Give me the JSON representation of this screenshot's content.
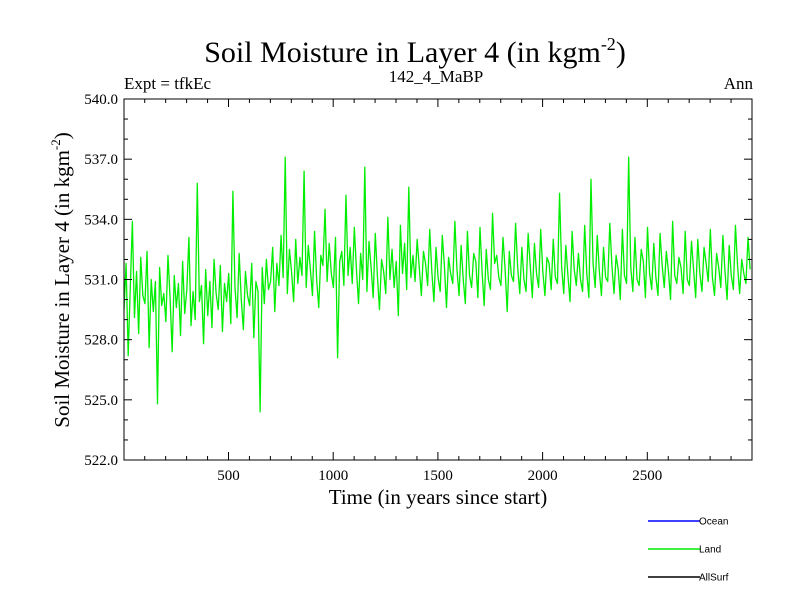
{
  "chart_data": {
    "type": "line",
    "title_main": "Soil Moisture in Layer 4 (in kgm",
    "title_sup": "-2",
    "title_close": ")",
    "subtitle_left": "Expt = tfkEc",
    "subtitle_center": "142_4_MaBP",
    "subtitle_right": "Ann",
    "xlabel": "Time (in years since start)",
    "ylabel_main": "Soil Moisture in Layer 4 (in kgm",
    "ylabel_sup": "-2",
    "ylabel_close": ")",
    "xlim": [
      1,
      3000
    ],
    "ylim": [
      522.0,
      540.0
    ],
    "xticks": [
      500,
      1000,
      1500,
      2000,
      2500
    ],
    "xtick_labels": [
      "500",
      "1000",
      "1500",
      "2000",
      "2500"
    ],
    "yticks": [
      522.0,
      525.0,
      528.0,
      531.0,
      534.0,
      537.0,
      540.0
    ],
    "ytick_labels": [
      "522.0",
      "525.0",
      "528.0",
      "531.0",
      "534.0",
      "537.0",
      "540.0"
    ],
    "legend_position": "below-right",
    "series": [
      {
        "name": "Ocean",
        "color": "#0000ff",
        "values": []
      },
      {
        "name": "Land",
        "color": "#00ee00",
        "x_start": 1,
        "x_step": 10,
        "values": [
          529.5,
          531.8,
          527.2,
          530.6,
          533.9,
          529.1,
          531.4,
          528.3,
          532.1,
          530.2,
          529.8,
          532.4,
          527.6,
          531.0,
          529.4,
          530.9,
          524.8,
          531.6,
          529.7,
          530.3,
          528.9,
          532.2,
          530.1,
          527.4,
          531.2,
          529.6,
          530.8,
          528.2,
          531.9,
          529.3,
          530.5,
          533.1,
          528.7,
          530.4,
          529.0,
          535.8,
          529.9,
          530.7,
          527.8,
          531.5,
          529.2,
          530.9,
          528.6,
          532.0,
          530.3,
          529.5,
          531.7,
          528.4,
          530.8,
          529.9,
          531.3,
          528.8,
          535.4,
          530.6,
          529.1,
          532.3,
          530.0,
          528.5,
          531.4,
          530.2,
          529.7,
          531.8,
          528.1,
          530.9,
          530.4,
          524.4,
          531.6,
          529.8,
          532.0,
          530.5,
          530.9,
          532.6,
          529.4,
          531.8,
          530.7,
          533.2,
          531.1,
          537.1,
          530.3,
          532.5,
          531.4,
          529.9,
          533.0,
          530.8,
          532.1,
          531.2,
          536.4,
          530.6,
          532.7,
          531.5,
          530.2,
          533.4,
          531.0,
          529.6,
          532.2,
          531.7,
          534.5,
          530.9,
          532.8,
          531.3,
          530.6,
          533.1,
          527.1,
          531.9,
          532.4,
          530.7,
          535.2,
          531.2,
          532.6,
          530.8,
          533.6,
          531.5,
          529.8,
          532.3,
          531.0,
          536.6,
          530.4,
          532.9,
          531.6,
          530.1,
          533.3,
          531.2,
          529.5,
          532.0,
          531.4,
          530.3,
          534.1,
          531.0,
          532.5,
          530.6,
          531.9,
          529.2,
          533.7,
          531.3,
          532.8,
          530.5,
          535.6,
          531.1,
          532.2,
          530.9,
          533.0,
          531.6,
          530.2,
          532.4,
          531.8,
          530.7,
          533.5,
          531.4,
          529.9,
          532.6,
          531.1,
          530.4,
          533.2,
          531.7,
          529.6,
          532.1,
          531.3,
          530.8,
          533.9,
          531.5,
          530.2,
          532.7,
          531.0,
          529.8,
          533.4,
          531.2,
          530.6,
          532.3,
          531.9,
          530.1,
          533.6,
          531.4,
          529.7,
          532.5,
          531.0,
          530.5,
          534.3,
          531.8,
          532.2,
          531.1,
          530.7,
          533.1,
          531.5,
          529.4,
          532.4,
          531.2,
          530.9,
          533.8,
          531.6,
          530.3,
          532.6,
          531.0,
          530.4,
          533.3,
          531.7,
          530.1,
          532.8,
          531.3,
          530.6,
          533.5,
          531.4,
          530.2,
          532.1,
          531.8,
          530.5,
          533.0,
          531.1,
          530.8,
          535.3,
          531.6,
          530.3,
          532.7,
          531.2,
          529.9,
          533.4,
          531.5,
          530.7,
          532.3,
          531.0,
          530.4,
          533.7,
          531.3,
          530.1,
          536.0,
          531.8,
          530.6,
          533.2,
          531.4,
          530.2,
          532.6,
          531.1,
          530.9,
          533.8,
          531.7,
          530.3,
          532.2,
          531.5,
          530.0,
          533.5,
          531.2,
          530.8,
          537.1,
          531.6,
          530.4,
          533.1,
          531.0,
          530.7,
          532.5,
          531.9,
          530.1,
          533.6,
          531.3,
          530.5,
          532.8,
          531.1,
          530.2,
          533.3,
          531.7,
          530.6,
          532.4,
          531.4,
          530.0,
          533.9,
          531.2,
          530.8,
          532.1,
          531.6,
          530.3,
          533.4,
          531.0,
          530.7,
          532.9,
          531.5,
          530.1,
          533.0,
          531.3,
          530.4,
          532.6,
          531.8,
          530.9,
          533.5,
          531.1,
          530.2,
          532.3,
          531.6,
          530.6,
          533.2,
          531.4,
          530.0,
          532.7,
          531.2,
          530.5,
          533.7,
          531.7,
          530.3,
          532.0,
          531.3,
          530.8,
          533.1,
          531.5
        ]
      },
      {
        "name": "AllSurf",
        "color": "#000000",
        "values": []
      }
    ]
  }
}
